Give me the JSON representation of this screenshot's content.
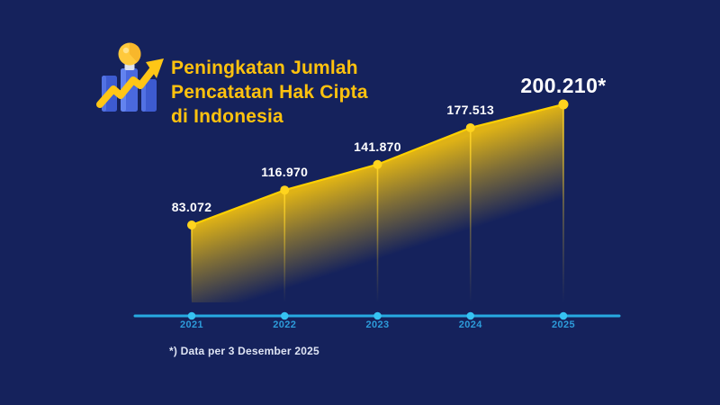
{
  "page": {
    "background": "#15225C"
  },
  "header": {
    "title_lines": [
      "Peningkatan Jumlah",
      "Pencatatan Hak Cipta",
      "di Indonesia"
    ],
    "title_color": "#FFC20E",
    "icon": "growth-chart-lightbulb-icon"
  },
  "chart_data": {
    "type": "area",
    "title": "Peningkatan Jumlah Pencatatan Hak Cipta di Indonesia",
    "categories": [
      "2021",
      "2022",
      "2023",
      "2024",
      "2025"
    ],
    "values": [
      83072,
      116970,
      141870,
      177513,
      200210
    ],
    "point_labels": [
      "83.072",
      "116.970",
      "141.870",
      "177.513",
      "200.210*"
    ],
    "highlight_index": 4,
    "xlabel": "",
    "ylabel": "",
    "ylim": [
      0,
      220000
    ],
    "grid": false,
    "legend": false,
    "colors": {
      "line": "#FFD100",
      "point": "#FFD41E",
      "area_top": "#E9BA12",
      "drop_line": "#FFD428",
      "axis": "#27AAE1",
      "axis_dot": "#36C3F2",
      "year_label": "#2D9CDB",
      "value_label": "#FFFFFF"
    }
  },
  "footnote": {
    "text": "*) Data per 3 Desember 2025"
  }
}
